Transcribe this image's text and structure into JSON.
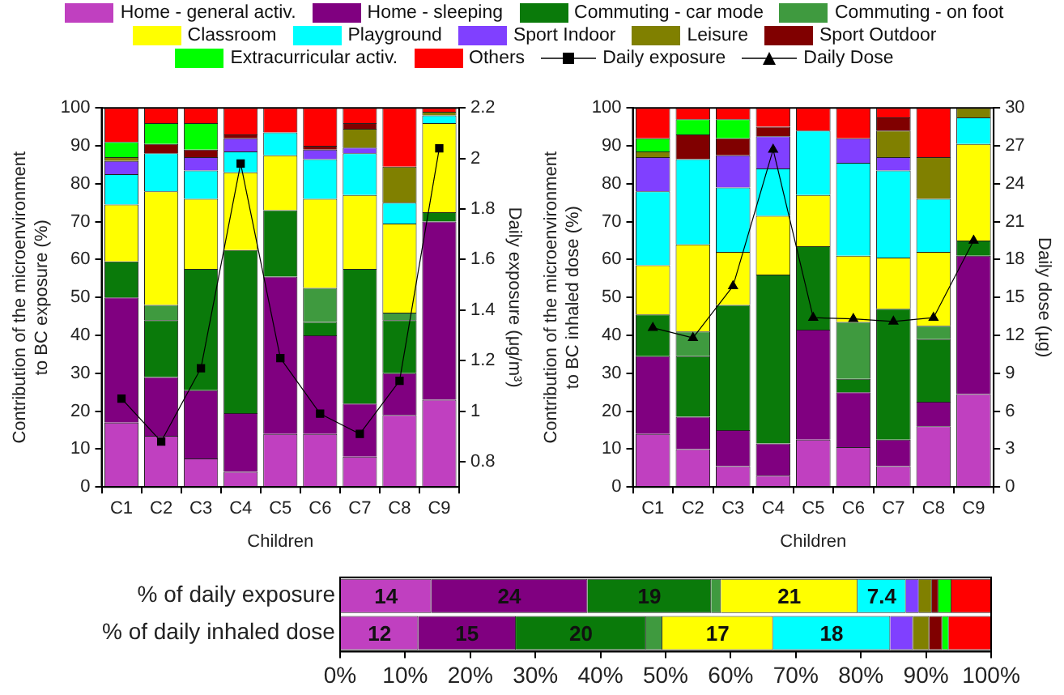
{
  "chart_data": [
    {
      "type": "bar",
      "stacked": true,
      "legend": "top",
      "categories": [
        "C1",
        "C2",
        "C3",
        "C4",
        "C5",
        "C6",
        "C7",
        "C8",
        "C9"
      ],
      "xlabel": "Children",
      "ylabel": "Contribution of the microenvironment\nto BC exposure (%)",
      "y2label": "Daily exposure (μg/m³)",
      "ylim": [
        0,
        100
      ],
      "yticks": [
        0,
        10,
        20,
        30,
        40,
        50,
        60,
        70,
        80,
        90,
        100
      ],
      "y2lim": [
        0.7,
        2.2
      ],
      "y2ticks": [
        0.8,
        1.0,
        1.2,
        1.4,
        1.6,
        1.8,
        2.0,
        2.2
      ],
      "series": [
        {
          "name": "Home - general activ.",
          "color": "#c040c0",
          "values": [
            17,
            13.5,
            7.5,
            4,
            14,
            14,
            8,
            19,
            23
          ]
        },
        {
          "name": "Home - sleeping",
          "color": "#800080",
          "values": [
            33,
            15.5,
            18,
            15.5,
            41.5,
            26,
            14,
            11,
            47
          ]
        },
        {
          "name": "Commuting - car mode",
          "color": "#0a7a0a",
          "values": [
            9.5,
            15,
            32,
            43,
            17.5,
            3.5,
            35.5,
            14,
            2.5
          ]
        },
        {
          "name": "Commuting - on foot",
          "color": "#3f9a3f",
          "values": [
            0,
            4,
            0,
            0,
            0,
            9,
            0,
            2,
            0
          ]
        },
        {
          "name": "Classroom",
          "color": "#ffff00",
          "values": [
            15,
            30,
            18.5,
            20.5,
            14.5,
            23.5,
            19.5,
            23.5,
            23.5
          ]
        },
        {
          "name": "Playground",
          "color": "#00ffff",
          "values": [
            8,
            10,
            7.5,
            5.5,
            6,
            10.5,
            11,
            5.5,
            2
          ]
        },
        {
          "name": "Sport Indoor",
          "color": "#8040ff",
          "values": [
            3.5,
            0,
            3.5,
            3.5,
            0,
            2.5,
            1.5,
            0,
            0
          ]
        },
        {
          "name": "Leisure",
          "color": "#808000",
          "values": [
            1,
            0,
            0,
            0,
            0,
            0,
            5,
            9.5,
            1
          ]
        },
        {
          "name": "Sport Outdoor",
          "color": "#800000",
          "values": [
            0,
            2.5,
            2,
            1,
            0,
            1,
            1.5,
            0,
            0
          ]
        },
        {
          "name": "Extracurricular activ.",
          "color": "#00ff00",
          "values": [
            4,
            5.5,
            7,
            0,
            0,
            0,
            0,
            0,
            0
          ]
        },
        {
          "name": "Others",
          "color": "#ff0000",
          "values": [
            9,
            4,
            4,
            7,
            6.5,
            10,
            4,
            15.5,
            1
          ]
        },
        {
          "name": "Daily exposure",
          "type": "line",
          "axis": "y2",
          "marker": "square",
          "color": "#000000",
          "values": [
            1.05,
            0.88,
            1.17,
            1.98,
            1.21,
            0.99,
            0.91,
            1.12,
            2.04
          ]
        }
      ]
    },
    {
      "type": "bar",
      "stacked": true,
      "legend": "top",
      "categories": [
        "C1",
        "C2",
        "C3",
        "C4",
        "C5",
        "C6",
        "C7",
        "C8",
        "C9"
      ],
      "xlabel": "Children",
      "ylabel": "Contribution of the microenvironment\nto BC inhaled dose (%)",
      "y2label": "Daily dose (µg)",
      "ylim": [
        0,
        100
      ],
      "yticks": [
        0,
        10,
        20,
        30,
        40,
        50,
        60,
        70,
        80,
        90,
        100
      ],
      "y2lim": [
        0,
        30
      ],
      "y2ticks": [
        0,
        3,
        6,
        9,
        12,
        15,
        18,
        21,
        24,
        27,
        30
      ],
      "series": [
        {
          "color": "#c040c0",
          "values": [
            14,
            10,
            5.5,
            3,
            12.5,
            10.5,
            5.5,
            16,
            24.5
          ]
        },
        {
          "color": "#800080",
          "values": [
            20.5,
            8.5,
            9.5,
            8.5,
            29,
            14.5,
            7,
            6.5,
            36.5
          ]
        },
        {
          "color": "#0a7a0a",
          "values": [
            11,
            16,
            33,
            44.5,
            22,
            3.5,
            34.5,
            16.5,
            4
          ]
        },
        {
          "color": "#3f9a3f",
          "values": [
            0,
            6.5,
            0,
            0,
            0,
            15,
            0,
            3.5,
            0
          ]
        },
        {
          "color": "#ffff00",
          "values": [
            13,
            23,
            14,
            15.5,
            13.5,
            17.5,
            13.5,
            19.5,
            25.5
          ]
        },
        {
          "color": "#00ffff",
          "values": [
            19.5,
            22.5,
            17,
            12.5,
            17,
            24.5,
            23,
            14,
            7
          ]
        },
        {
          "color": "#8040ff",
          "values": [
            9,
            0,
            8.5,
            8.5,
            0,
            6.5,
            3.5,
            0,
            0
          ]
        },
        {
          "color": "#808000",
          "values": [
            1.5,
            0,
            0,
            0,
            0,
            0,
            7,
            11,
            2.5
          ]
        },
        {
          "color": "#800000",
          "values": [
            0,
            6.5,
            4.5,
            2.5,
            0,
            0,
            3.5,
            0,
            0
          ]
        },
        {
          "color": "#00ff00",
          "values": [
            3.5,
            4,
            5,
            0,
            0,
            0,
            0,
            0,
            0
          ]
        },
        {
          "color": "#ff0000",
          "values": [
            8,
            3,
            3,
            5,
            6,
            8,
            2.5,
            13,
            0
          ]
        },
        {
          "name": "Daily Dose",
          "type": "line",
          "axis": "y2",
          "marker": "triangle",
          "color": "#000000",
          "values": [
            12.6,
            11.8,
            15.9,
            26.7,
            13.4,
            13.3,
            13.1,
            13.4,
            19.5
          ]
        }
      ]
    },
    {
      "type": "bar",
      "stacked": true,
      "orientation": "horizontal",
      "categories": [
        "% of daily exposure",
        "% of daily inhaled dose"
      ],
      "xlim": [
        0,
        100
      ],
      "xticks": [
        {
          "value": 0,
          "label": "0%"
        },
        {
          "value": 10,
          "label": "10%"
        },
        {
          "value": 20,
          "label": "20%"
        },
        {
          "value": 30,
          "label": "30%"
        },
        {
          "value": 40,
          "label": "40%"
        },
        {
          "value": 50,
          "label": "50%"
        },
        {
          "value": 60,
          "label": "60%"
        },
        {
          "value": 70,
          "label": "70%"
        },
        {
          "value": 80,
          "label": "80%"
        },
        {
          "value": 90,
          "label": "90%"
        },
        {
          "value": 100,
          "label": "100%"
        }
      ],
      "series": [
        {
          "color": "#c040c0",
          "values": [
            14,
            12
          ],
          "value_labels": [
            "14",
            "12"
          ]
        },
        {
          "color": "#800080",
          "values": [
            24,
            15
          ],
          "value_labels": [
            "24",
            "15"
          ]
        },
        {
          "color": "#0a7a0a",
          "values": [
            19,
            20
          ],
          "value_labels": [
            "19",
            "20"
          ]
        },
        {
          "color": "#3f9a3f",
          "values": [
            1.5,
            2.5
          ]
        },
        {
          "color": "#ffff00",
          "values": [
            21,
            17
          ],
          "value_labels": [
            "21",
            "17"
          ]
        },
        {
          "color": "#00ffff",
          "values": [
            7.4,
            18
          ],
          "value_labels": [
            "7.4",
            "18"
          ]
        },
        {
          "color": "#8040ff",
          "values": [
            2,
            3.5
          ]
        },
        {
          "color": "#808000",
          "values": [
            2,
            2.5
          ]
        },
        {
          "color": "#800000",
          "values": [
            1,
            2
          ]
        },
        {
          "color": "#00ff00",
          "values": [
            2,
            1
          ]
        },
        {
          "color": "#ff0000",
          "values": [
            6.1,
            6.5
          ]
        }
      ]
    }
  ]
}
